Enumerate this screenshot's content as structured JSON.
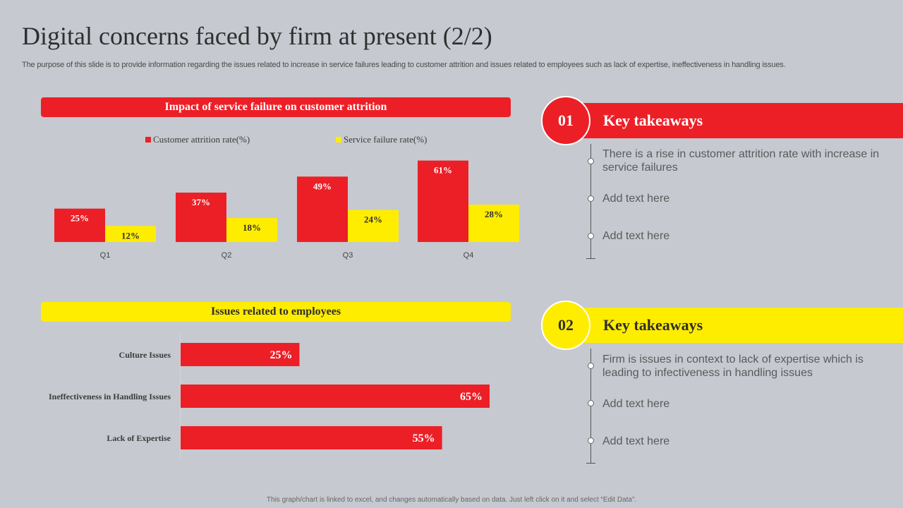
{
  "page": {
    "title": "Digital concerns faced by firm at present (2/2)",
    "subtitle": "The purpose of this slide is to provide information regarding the issues related to increase in service failures leading to customer attrition and issues related to employees such as lack of expertise, ineffectiveness in handling issues.",
    "footer": "This graph/chart is linked to excel, and changes automatically based on data. Just left click on it and select “Edit Data”."
  },
  "colors": {
    "red": "#ec1f27",
    "yellow": "#ffed00",
    "background": "#c6c9cf"
  },
  "chart_data": [
    {
      "type": "bar",
      "title": "Impact of service failure on customer attrition",
      "categories": [
        "Q1",
        "Q2",
        "Q3",
        "Q4"
      ],
      "series": [
        {
          "name": "Customer attrition rate(%)",
          "values": [
            25,
            37,
            49,
            61
          ],
          "labels": [
            "25%",
            "37%",
            "49%",
            "61%"
          ],
          "color": "#ec1f27"
        },
        {
          "name": "Service failure rate(%)",
          "values": [
            12,
            18,
            24,
            28
          ],
          "labels": [
            "12%",
            "18%",
            "24%",
            "28%"
          ],
          "color": "#ffed00"
        }
      ],
      "ylim": [
        0,
        65
      ],
      "legend": "top"
    },
    {
      "type": "bar",
      "orientation": "horizontal",
      "title": "Issues related to employees",
      "categories": [
        "Culture Issues",
        "Ineffectiveness in Handling Issues",
        "Lack of Expertise"
      ],
      "values": [
        25,
        65,
        55
      ],
      "labels": [
        "25%",
        "65%",
        "55%"
      ],
      "xlim": [
        0,
        70
      ],
      "color": "#ec1f27"
    }
  ],
  "takeaways": [
    {
      "number": "01",
      "heading": "Key takeaways",
      "items": [
        "There is a rise in customer attrition rate with increase in service failures",
        "Add text here",
        "Add text here"
      ]
    },
    {
      "number": "02",
      "heading": "Key takeaways",
      "items": [
        "Firm is issues in context to lack of expertise which is leading to infectiveness in handling issues",
        "Add text here",
        "Add text here"
      ]
    }
  ]
}
